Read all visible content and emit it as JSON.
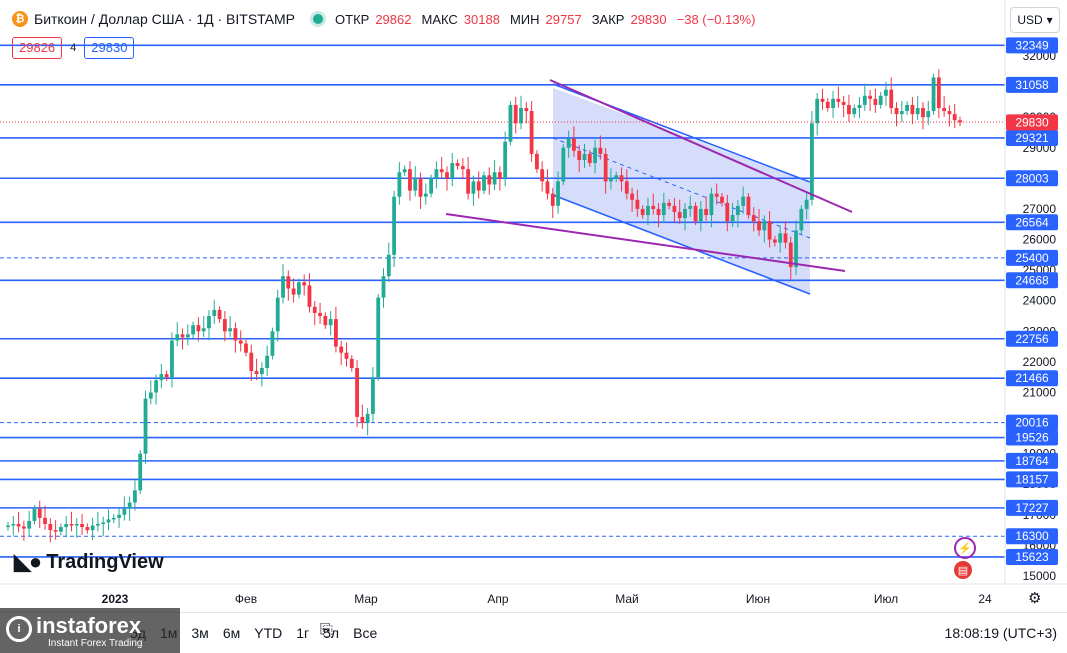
{
  "legend": {
    "symbol_icon": "bitcoin-icon",
    "title": "Биткоин / Доллар США · 1Д · BITSTAMP",
    "open_label": "ОТКР",
    "open_value": "29862",
    "high_label": "МАКС",
    "high_value": "30188",
    "low_label": "МИН",
    "low_value": "29757",
    "close_label": "ЗАКР",
    "close_value": "29830",
    "change": "−38 (−0.13%)"
  },
  "trade": {
    "bid": "29826",
    "spread": "4",
    "ask": "29830"
  },
  "currency": "USD",
  "logo": "TradingView",
  "bottom": {
    "periods": [
      "5д",
      "1м",
      "3м",
      "6м",
      "YTD",
      "1г",
      "5л",
      "Все"
    ],
    "time": "18:08:19 (UTC+3)"
  },
  "watermark": {
    "brand": "instaforex",
    "tagline": "Instant Forex Trading"
  },
  "chart_data": {
    "type": "candlestick",
    "y_ticks": [
      15000,
      16000,
      17000,
      18000,
      19000,
      20000,
      21000,
      22000,
      23000,
      24000,
      25000,
      26000,
      27000,
      28000,
      29000,
      30000,
      31000,
      32000
    ],
    "x_ticks": [
      "2023",
      "Фев",
      "Мар",
      "Апр",
      "Май",
      "Июн",
      "Июл",
      "24"
    ],
    "levels": [
      {
        "price": 32349,
        "style": "solid"
      },
      {
        "price": 31058,
        "style": "solid"
      },
      {
        "price": 29321,
        "style": "solid"
      },
      {
        "price": 28003,
        "style": "solid"
      },
      {
        "price": 26564,
        "style": "solid"
      },
      {
        "price": 25400,
        "style": "dashed"
      },
      {
        "price": 24668,
        "style": "solid"
      },
      {
        "price": 22756,
        "style": "solid"
      },
      {
        "price": 21466,
        "style": "solid"
      },
      {
        "price": 20016,
        "style": "dashed"
      },
      {
        "price": 19526,
        "style": "solid"
      },
      {
        "price": 18764,
        "style": "solid"
      },
      {
        "price": 18157,
        "style": "solid"
      },
      {
        "price": 17227,
        "style": "solid"
      },
      {
        "price": 16300,
        "style": "dashed"
      },
      {
        "price": 15623,
        "style": "solid"
      }
    ],
    "last_price": "29830",
    "colors": {
      "up": "#22ab94",
      "down": "#f23645",
      "level": "#2962ff",
      "trend": "#9c27b0",
      "channel_fill": "#b3c1f7"
    },
    "closes": [
      16650,
      16700,
      16620,
      16550,
      16800,
      17200,
      16900,
      16700,
      16500,
      16450,
      16600,
      16700,
      16650,
      16700,
      16600,
      16500,
      16650,
      16700,
      16750,
      16850,
      16900,
      17000,
      17200,
      17400,
      17800,
      19000,
      20800,
      21000,
      21400,
      21600,
      21500,
      22700,
      22900,
      22800,
      22900,
      23200,
      23000,
      23100,
      23500,
      23700,
      23400,
      23000,
      23100,
      22700,
      22600,
      22300,
      21700,
      21600,
      21800,
      22200,
      23000,
      24100,
      24800,
      24400,
      24200,
      24600,
      24500,
      23800,
      23600,
      23500,
      23200,
      23400,
      22500,
      22300,
      22100,
      21800,
      20200,
      20000,
      20300,
      21500,
      24100,
      24800,
      25500,
      27400,
      28200,
      28300,
      27600,
      28000,
      27400,
      27500,
      28000,
      28300,
      28200,
      28000,
      28500,
      28400,
      28300,
      27500,
      27900,
      27600,
      28100,
      27800,
      28200,
      28000,
      29200,
      30400,
      29800,
      30300,
      30200,
      28800,
      28300,
      27900,
      27500,
      27100,
      27900,
      29000,
      29300,
      28900,
      28600,
      28800,
      28500,
      29000,
      28800,
      27900,
      28000,
      28100,
      27900,
      27500,
      27300,
      27000,
      26800,
      27100,
      27000,
      26800,
      27200,
      27100,
      26900,
      26700,
      27000,
      27100,
      26600,
      27000,
      26800,
      27500,
      27400,
      27200,
      26600,
      26800,
      27100,
      27400,
      26800,
      26600,
      26300,
      26600,
      26000,
      25900,
      26200,
      25900,
      25100,
      26300,
      27000,
      27300,
      29800,
      30600,
      30500,
      30300,
      30600,
      30500,
      30400,
      30100,
      30300,
      30400,
      30700,
      30600,
      30400,
      30700,
      30900,
      30300,
      30100,
      30200,
      30400,
      30100,
      30300,
      30000,
      30200,
      31300,
      30300,
      30200,
      30100,
      29900,
      29830
    ]
  }
}
